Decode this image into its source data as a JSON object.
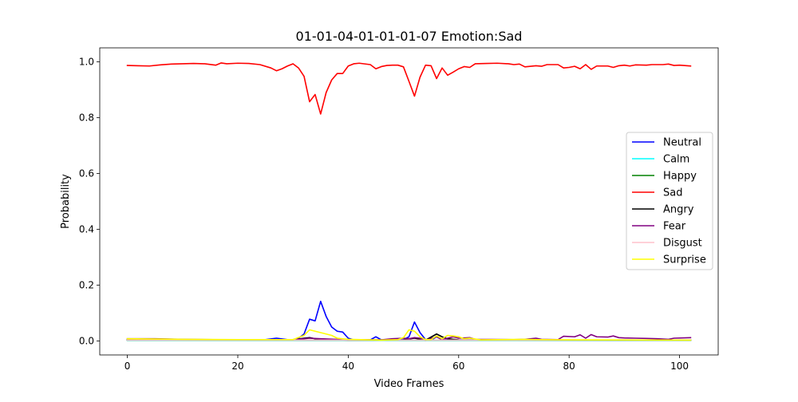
{
  "chart_data": {
    "type": "line",
    "title": "01-01-04-01-01-01-07 Emotion:Sad",
    "xlabel": "Video Frames",
    "ylabel": "Probability",
    "xlim": [
      -5,
      107
    ],
    "ylim": [
      -0.05,
      1.05
    ],
    "xticks": [
      0,
      20,
      40,
      60,
      80,
      100
    ],
    "xtick_labels": [
      "0",
      "20",
      "40",
      "60",
      "80",
      "100"
    ],
    "yticks": [
      0.0,
      0.2,
      0.4,
      0.6,
      0.8,
      1.0
    ],
    "ytick_labels": [
      "0.0",
      "0.2",
      "0.4",
      "0.6",
      "0.8",
      "1.0"
    ],
    "grid": false,
    "legend_position": "center-right",
    "series": [
      {
        "name": "Neutral",
        "color": "#0000ff",
        "points": [
          [
            0,
            0.005
          ],
          [
            25,
            0.005
          ],
          [
            27,
            0.01
          ],
          [
            29,
            0.005
          ],
          [
            30,
            0.005
          ],
          [
            31,
            0.01
          ],
          [
            32,
            0.025
          ],
          [
            33,
            0.078
          ],
          [
            34,
            0.072
          ],
          [
            35,
            0.142
          ],
          [
            36,
            0.088
          ],
          [
            37,
            0.05
          ],
          [
            38,
            0.035
          ],
          [
            39,
            0.032
          ],
          [
            40,
            0.01
          ],
          [
            41,
            0.004
          ],
          [
            44,
            0.004
          ],
          [
            45,
            0.015
          ],
          [
            46,
            0.004
          ],
          [
            50,
            0.005
          ],
          [
            51,
            0.015
          ],
          [
            52,
            0.068
          ],
          [
            53,
            0.03
          ],
          [
            54,
            0.005
          ],
          [
            55,
            0.003
          ],
          [
            56,
            0.015
          ],
          [
            57,
            0.005
          ],
          [
            58,
            0.005
          ],
          [
            60,
            0.003
          ],
          [
            102,
            0.003
          ]
        ]
      },
      {
        "name": "Calm",
        "color": "#00ffff",
        "points": [
          [
            0,
            0.002
          ],
          [
            102,
            0.002
          ]
        ]
      },
      {
        "name": "Happy",
        "color": "#008000",
        "points": [
          [
            0,
            0.003
          ],
          [
            102,
            0.003
          ]
        ]
      },
      {
        "name": "Sad",
        "color": "#ff0000",
        "points": [
          [
            0,
            0.987
          ],
          [
            2,
            0.986
          ],
          [
            4,
            0.985
          ],
          [
            6,
            0.989
          ],
          [
            8,
            0.992
          ],
          [
            10,
            0.993
          ],
          [
            12,
            0.994
          ],
          [
            14,
            0.993
          ],
          [
            16,
            0.988
          ],
          [
            17,
            0.996
          ],
          [
            18,
            0.993
          ],
          [
            20,
            0.995
          ],
          [
            22,
            0.994
          ],
          [
            24,
            0.99
          ],
          [
            26,
            0.978
          ],
          [
            27,
            0.968
          ],
          [
            28,
            0.975
          ],
          [
            29,
            0.985
          ],
          [
            30,
            0.993
          ],
          [
            31,
            0.978
          ],
          [
            32,
            0.948
          ],
          [
            33,
            0.857
          ],
          [
            34,
            0.883
          ],
          [
            35,
            0.813
          ],
          [
            36,
            0.89
          ],
          [
            37,
            0.935
          ],
          [
            38,
            0.958
          ],
          [
            39,
            0.958
          ],
          [
            40,
            0.985
          ],
          [
            41,
            0.993
          ],
          [
            42,
            0.995
          ],
          [
            44,
            0.99
          ],
          [
            45,
            0.975
          ],
          [
            46,
            0.983
          ],
          [
            47,
            0.987
          ],
          [
            48,
            0.988
          ],
          [
            49,
            0.988
          ],
          [
            50,
            0.982
          ],
          [
            51,
            0.93
          ],
          [
            52,
            0.877
          ],
          [
            53,
            0.945
          ],
          [
            54,
            0.988
          ],
          [
            55,
            0.986
          ],
          [
            56,
            0.94
          ],
          [
            57,
            0.978
          ],
          [
            58,
            0.952
          ],
          [
            59,
            0.963
          ],
          [
            60,
            0.975
          ],
          [
            61,
            0.983
          ],
          [
            62,
            0.98
          ],
          [
            63,
            0.993
          ],
          [
            65,
            0.994
          ],
          [
            67,
            0.995
          ],
          [
            69,
            0.993
          ],
          [
            70,
            0.99
          ],
          [
            71,
            0.992
          ],
          [
            72,
            0.982
          ],
          [
            74,
            0.986
          ],
          [
            75,
            0.984
          ],
          [
            76,
            0.99
          ],
          [
            78,
            0.99
          ],
          [
            79,
            0.978
          ],
          [
            80,
            0.98
          ],
          [
            81,
            0.984
          ],
          [
            82,
            0.975
          ],
          [
            83,
            0.99
          ],
          [
            84,
            0.973
          ],
          [
            85,
            0.985
          ],
          [
            87,
            0.985
          ],
          [
            88,
            0.98
          ],
          [
            89,
            0.986
          ],
          [
            90,
            0.988
          ],
          [
            91,
            0.985
          ],
          [
            92,
            0.989
          ],
          [
            94,
            0.988
          ],
          [
            95,
            0.99
          ],
          [
            97,
            0.99
          ],
          [
            98,
            0.992
          ],
          [
            99,
            0.987
          ],
          [
            100,
            0.988
          ],
          [
            102,
            0.985
          ]
        ]
      },
      {
        "name": "Angry",
        "color": "#000000",
        "points": [
          [
            0,
            0.004
          ],
          [
            30,
            0.004
          ],
          [
            32,
            0.01
          ],
          [
            33,
            0.012
          ],
          [
            34,
            0.008
          ],
          [
            40,
            0.003
          ],
          [
            50,
            0.004
          ],
          [
            52,
            0.01
          ],
          [
            54,
            0.003
          ],
          [
            56,
            0.025
          ],
          [
            57,
            0.015
          ],
          [
            58,
            0.008
          ],
          [
            60,
            0.004
          ],
          [
            102,
            0.003
          ]
        ]
      },
      {
        "name": "Fear",
        "color": "#800080",
        "points": [
          [
            0,
            0.008
          ],
          [
            5,
            0.008
          ],
          [
            10,
            0.006
          ],
          [
            20,
            0.004
          ],
          [
            30,
            0.004
          ],
          [
            33,
            0.01
          ],
          [
            35,
            0.008
          ],
          [
            40,
            0.004
          ],
          [
            46,
            0.004
          ],
          [
            48,
            0.008
          ],
          [
            50,
            0.01
          ],
          [
            51,
            0.008
          ],
          [
            52,
            0.012
          ],
          [
            53,
            0.01
          ],
          [
            54,
            0.003
          ],
          [
            56,
            0.015
          ],
          [
            57,
            0.005
          ],
          [
            58,
            0.01
          ],
          [
            59,
            0.015
          ],
          [
            60,
            0.01
          ],
          [
            62,
            0.012
          ],
          [
            63,
            0.006
          ],
          [
            70,
            0.005
          ],
          [
            72,
            0.006
          ],
          [
            74,
            0.01
          ],
          [
            75,
            0.006
          ],
          [
            78,
            0.005
          ],
          [
            79,
            0.017
          ],
          [
            81,
            0.015
          ],
          [
            82,
            0.022
          ],
          [
            83,
            0.01
          ],
          [
            84,
            0.023
          ],
          [
            85,
            0.015
          ],
          [
            87,
            0.014
          ],
          [
            88,
            0.018
          ],
          [
            89,
            0.012
          ],
          [
            90,
            0.011
          ],
          [
            92,
            0.01
          ],
          [
            94,
            0.009
          ],
          [
            96,
            0.008
          ],
          [
            98,
            0.006
          ],
          [
            99,
            0.01
          ],
          [
            102,
            0.012
          ]
        ]
      },
      {
        "name": "Disgust",
        "color": "#ffc0cb",
        "points": [
          [
            0,
            0.003
          ],
          [
            102,
            0.003
          ]
        ]
      },
      {
        "name": "Surprise",
        "color": "#ffff00",
        "points": [
          [
            0,
            0.008
          ],
          [
            10,
            0.006
          ],
          [
            20,
            0.005
          ],
          [
            30,
            0.005
          ],
          [
            32,
            0.02
          ],
          [
            33,
            0.04
          ],
          [
            34,
            0.035
          ],
          [
            35,
            0.03
          ],
          [
            36,
            0.025
          ],
          [
            37,
            0.02
          ],
          [
            38,
            0.01
          ],
          [
            40,
            0.006
          ],
          [
            46,
            0.003
          ],
          [
            49,
            0.005
          ],
          [
            50,
            0.012
          ],
          [
            51,
            0.04
          ],
          [
            52,
            0.035
          ],
          [
            53,
            0.015
          ],
          [
            54,
            0.005
          ],
          [
            55,
            0.005
          ],
          [
            56,
            0.018
          ],
          [
            57,
            0.008
          ],
          [
            58,
            0.02
          ],
          [
            59,
            0.018
          ],
          [
            60,
            0.015
          ],
          [
            61,
            0.008
          ],
          [
            62,
            0.01
          ],
          [
            64,
            0.004
          ],
          [
            72,
            0.006
          ],
          [
            74,
            0.005
          ],
          [
            80,
            0.004
          ],
          [
            102,
            0.003
          ]
        ]
      }
    ]
  }
}
